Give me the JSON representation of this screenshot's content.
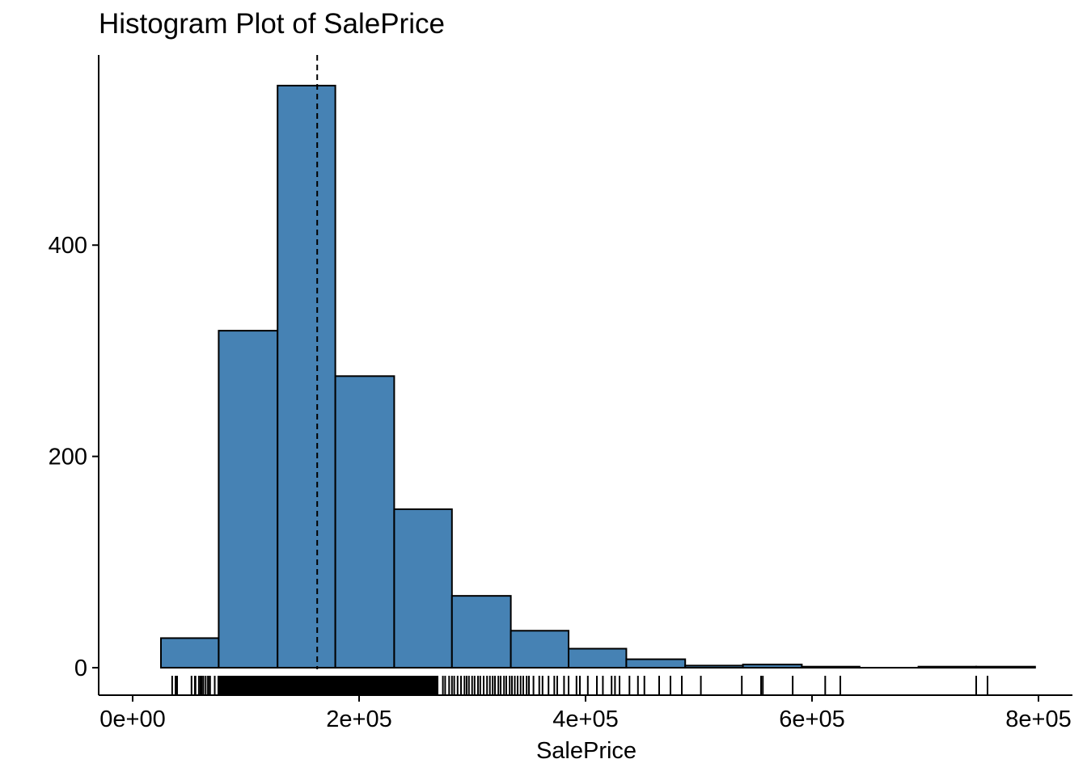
{
  "chart_data": {
    "type": "bar",
    "title": "Histogram Plot of SalePrice",
    "xlabel": "SalePrice",
    "ylabel": "",
    "xlim": [
      -30000,
      830000
    ],
    "ylim": [
      -26,
      580
    ],
    "x_ticks": [
      {
        "value": 0,
        "label": "0e+00"
      },
      {
        "value": 200000,
        "label": "2e+05"
      },
      {
        "value": 400000,
        "label": "4e+05"
      },
      {
        "value": 600000,
        "label": "6e+05"
      },
      {
        "value": 800000,
        "label": "8e+05"
      }
    ],
    "y_ticks": [
      {
        "value": 0,
        "label": "0"
      },
      {
        "value": 200,
        "label": "200"
      },
      {
        "value": 400,
        "label": "400"
      }
    ],
    "bins": [
      {
        "start": 25000,
        "end": 76000,
        "count": 28
      },
      {
        "start": 76000,
        "end": 128000,
        "count": 319
      },
      {
        "start": 128000,
        "end": 179000,
        "count": 551
      },
      {
        "start": 179000,
        "end": 231000,
        "count": 276
      },
      {
        "start": 231000,
        "end": 282000,
        "count": 150
      },
      {
        "start": 282000,
        "end": 334000,
        "count": 68
      },
      {
        "start": 334000,
        "end": 385000,
        "count": 35
      },
      {
        "start": 385000,
        "end": 436000,
        "count": 18
      },
      {
        "start": 436000,
        "end": 488000,
        "count": 8
      },
      {
        "start": 488000,
        "end": 539000,
        "count": 2
      },
      {
        "start": 539000,
        "end": 591000,
        "count": 3
      },
      {
        "start": 591000,
        "end": 642000,
        "count": 1
      },
      {
        "start": 642000,
        "end": 694000,
        "count": 0
      },
      {
        "start": 694000,
        "end": 745000,
        "count": 1
      },
      {
        "start": 745000,
        "end": 797000,
        "count": 1
      }
    ],
    "mean_line": 163000,
    "rug_dense_range": [
      75000,
      270000
    ],
    "rug_values": [
      34900,
      37900,
      39300,
      52000,
      55000,
      55500,
      58500,
      60000,
      61000,
      62500,
      64500,
      66500,
      67000,
      68400,
      72500,
      274000,
      276000,
      279500,
      282000,
      284000,
      287000,
      290000,
      293077,
      295000,
      297000,
      299800,
      302000,
      305000,
      307000,
      310000,
      313000,
      315500,
      318000,
      320000,
      323000,
      325000,
      328000,
      330000,
      333000,
      335000,
      337500,
      340000,
      342643,
      345000,
      348000,
      350000,
      354000,
      359100,
      362000,
      367294,
      372402,
      375000,
      381000,
      385000,
      392000,
      395000,
      402000,
      410000,
      415298,
      423000,
      426000,
      430000,
      438780,
      446261,
      451950,
      465000,
      475000,
      485000,
      501837,
      538000,
      555000,
      556581,
      582933,
      611657,
      625000,
      745000,
      755000
    ],
    "colors": {
      "bar_fill": "#4682B4",
      "bar_stroke": "#000000",
      "axis": "#000000"
    }
  }
}
